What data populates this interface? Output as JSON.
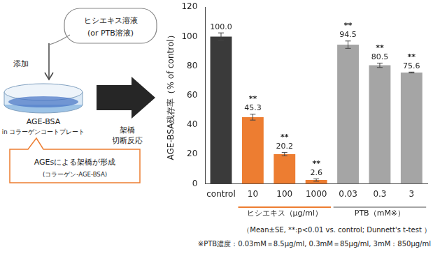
{
  "chart_data": {
    "type": "bar",
    "y_label": "AGE-BSA残存率（% of control）",
    "categories": [
      "control",
      "10",
      "100",
      "1000",
      "0.03",
      "0.3",
      "3"
    ],
    "values": [
      100,
      45.3,
      20.2,
      2.6,
      94.5,
      80.5,
      75.6
    ],
    "value_labels": [
      "100.0",
      "45.3",
      "20.2",
      "2.6",
      "94.5",
      "80.5",
      "75.6"
    ],
    "errors": [
      2.5,
      2.0,
      1.2,
      0.8,
      2.5,
      1.5,
      0.3
    ],
    "significance": [
      null,
      "**",
      "**",
      "**",
      "**",
      "**",
      "**"
    ],
    "colors": [
      "#3a3a3a",
      "#ed7d31",
      "#ed7d31",
      "#ed7d31",
      "#a5a5a5",
      "#a5a5a5",
      "#a5a5a5"
    ],
    "groups": [
      {
        "label": "ヒシエキス（μg/ml）",
        "categories": [
          "10",
          "100",
          "1000"
        ],
        "color": "#ed7d31"
      },
      {
        "label": "PTB（mM※）",
        "categories": [
          "0.03",
          "0.3",
          "3"
        ],
        "color": "#a5a5a5"
      }
    ],
    "ylim": [
      0,
      120
    ],
    "yticks": [
      0,
      20,
      40,
      60,
      80,
      100,
      120
    ],
    "grid": false,
    "data_labels": true
  },
  "diagram": {
    "solution_box": [
      "ヒシエキス溶液",
      "(or PTB溶液)"
    ],
    "add_label": "添加",
    "plate": [
      "AGE-BSA",
      "in コラーゲンコートプレート"
    ],
    "arrow_label": [
      "架橋",
      "切断反応"
    ],
    "crosslink_box": [
      "AGEsによる架橋が形成",
      "(コラーゲン-AGE-BSA)"
    ]
  },
  "notes": [
    "（Mean±SE, **:p<0.01 vs. control; Dunnett's t-test ）",
    "※PTB濃度：0.03mM＝8.5μg/ml, 0.3mM＝85μg/ml, 3mM：850μg/ml"
  ]
}
